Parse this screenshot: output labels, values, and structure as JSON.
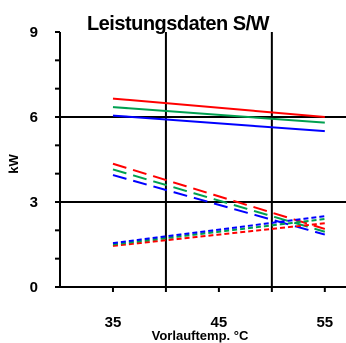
{
  "chart_data": {
    "type": "line",
    "title": "Leistungsdaten S/W",
    "xlabel": "Vorlauftemp. °C",
    "ylabel": "kW",
    "xlim": [
      30,
      57
    ],
    "ylim": [
      0,
      9
    ],
    "x_ticks": [
      "35",
      "45",
      "55"
    ],
    "x_tick_values": [
      35,
      45,
      55
    ],
    "y_ticks": [
      "0",
      "3",
      "6",
      "9"
    ],
    "y_tick_values": [
      0,
      3,
      6,
      9
    ],
    "grid": "vertical at 40 and 50, horizontal at 3 and 6",
    "legend": "none",
    "series": [
      {
        "color": "#ff0000",
        "style": "solid",
        "x": [
          35,
          55
        ],
        "values": [
          6.65,
          6.0
        ]
      },
      {
        "color": "#00a050",
        "style": "solid",
        "x": [
          35,
          55
        ],
        "values": [
          6.35,
          5.8
        ]
      },
      {
        "color": "#0000ff",
        "style": "solid",
        "x": [
          35,
          55
        ],
        "values": [
          6.05,
          5.5
        ]
      },
      {
        "color": "#ff0000",
        "style": "dashed",
        "x": [
          35,
          55
        ],
        "values": [
          4.35,
          2.05
        ]
      },
      {
        "color": "#00a050",
        "style": "dashed",
        "x": [
          35,
          55
        ],
        "values": [
          4.15,
          1.95
        ]
      },
      {
        "color": "#0000ff",
        "style": "dashed",
        "x": [
          35,
          55
        ],
        "values": [
          3.95,
          1.85
        ]
      },
      {
        "color": "#ff0000",
        "style": "dotted",
        "x": [
          35,
          55
        ],
        "values": [
          1.45,
          2.25
        ]
      },
      {
        "color": "#00a050",
        "style": "dotted",
        "x": [
          35,
          55
        ],
        "values": [
          1.5,
          2.4
        ]
      },
      {
        "color": "#0000ff",
        "style": "dotted",
        "x": [
          35,
          55
        ],
        "values": [
          1.55,
          2.5
        ]
      }
    ]
  }
}
